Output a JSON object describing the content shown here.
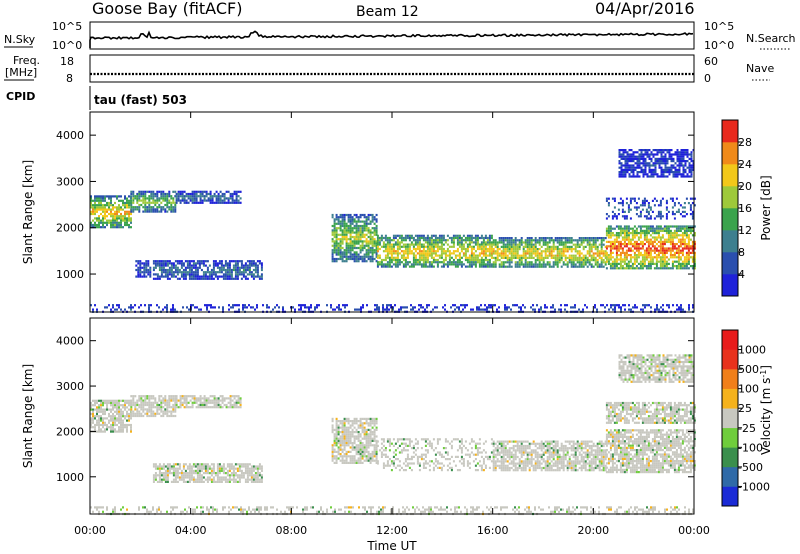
{
  "header": {
    "title": "Goose Bay (fitACF)",
    "beam": "Beam 12",
    "date": "04/Apr/2016"
  },
  "top_panels": {
    "nsky": {
      "label": "N.Sky",
      "right_label": "N.Search",
      "tick_top": "10^5",
      "tick_bottom": "10^0",
      "right_tick_top": "10^5",
      "right_tick_bottom": "10^0"
    },
    "freq": {
      "label_line1": "Freq.",
      "label_line2": "[MHz]",
      "right_label": "Nave",
      "tick_top": "18",
      "tick_bottom": "8",
      "right_tick_top": "60",
      "right_tick_bottom": "0"
    },
    "cpid": {
      "label": "CPID",
      "value": "tau (fast) 503"
    }
  },
  "chart_data": [
    {
      "type": "heatmap",
      "name": "power",
      "ylabel": "Slant Range [km]",
      "xlabel": "",
      "ylim": [
        180,
        4500
      ],
      "xlim": [
        0,
        24
      ],
      "yticks": [
        1000,
        2000,
        3000,
        4000
      ],
      "xticks": [
        0,
        4,
        8,
        12,
        16,
        20,
        24
      ],
      "colorbar": {
        "label": "Power [dB]",
        "ticks": [
          "4",
          "8",
          "12",
          "16",
          "20",
          "24",
          "28"
        ],
        "range": [
          0,
          30
        ],
        "colors": [
          "#1f22d9",
          "#2a4fae",
          "#3d7f8f",
          "#3aa34c",
          "#9ec93a",
          "#f2c81a",
          "#f08a1a",
          "#e8291c"
        ]
      },
      "regions": [
        {
          "t": [
            0.0,
            1.6
          ],
          "r": [
            2000,
            2700
          ],
          "level": 0.55
        },
        {
          "t": [
            1.6,
            3.4
          ],
          "r": [
            2350,
            2800
          ],
          "level": 0.4
        },
        {
          "t": [
            3.4,
            6.0
          ],
          "r": [
            2550,
            2800
          ],
          "level": 0.22
        },
        {
          "t": [
            1.8,
            2.4
          ],
          "r": [
            950,
            1300
          ],
          "level": 0.15
        },
        {
          "t": [
            2.5,
            6.8
          ],
          "r": [
            900,
            1300
          ],
          "level": 0.22
        },
        {
          "t": [
            0.0,
            24.0
          ],
          "r": [
            200,
            350
          ],
          "level": 0.12
        },
        {
          "t": [
            9.6,
            11.4
          ],
          "r": [
            1300,
            2300
          ],
          "level": 0.45
        },
        {
          "t": [
            11.4,
            16.0
          ],
          "r": [
            1150,
            1850
          ],
          "level": 0.55
        },
        {
          "t": [
            16.0,
            20.5
          ],
          "r": [
            1150,
            1800
          ],
          "level": 0.55
        },
        {
          "t": [
            20.5,
            24.0
          ],
          "r": [
            1100,
            2050
          ],
          "level": 0.7
        },
        {
          "t": [
            20.5,
            24.0
          ],
          "r": [
            2200,
            2650
          ],
          "level": 0.18
        },
        {
          "t": [
            21.0,
            24.0
          ],
          "r": [
            3100,
            3700
          ],
          "level": 0.12
        }
      ]
    },
    {
      "type": "heatmap",
      "name": "velocity",
      "ylabel": "Slant Range [km]",
      "xlabel": "Time UT",
      "ylim": [
        180,
        4500
      ],
      "xlim": [
        0,
        24
      ],
      "yticks": [
        1000,
        2000,
        3000,
        4000
      ],
      "xticks": [
        0,
        4,
        8,
        12,
        16,
        20,
        24
      ],
      "xtick_labels": [
        "00:00",
        "04:00",
        "08:00",
        "12:00",
        "16:00",
        "20:00",
        "00:00"
      ],
      "colorbar": {
        "label": "Velocity [m s-1]",
        "label_main": "Velocity ",
        "label_unit": "[m s",
        "label_exp": "-1",
        "label_close": "]",
        "ticks": [
          "1000",
          "500",
          "100",
          "25",
          "-25",
          "-100",
          "-500",
          "-1000"
        ],
        "colors": [
          "#1b2bd6",
          "#2f6aa8",
          "#3a8f4d",
          "#6fcd3c",
          "#c8c8c0",
          "#f5b21c",
          "#f07f1a",
          "#e8321c",
          "#e81b1b"
        ]
      },
      "regions": [
        {
          "t": [
            0.0,
            1.6
          ],
          "r": [
            2000,
            2700
          ],
          "level": 0.5
        },
        {
          "t": [
            1.6,
            3.4
          ],
          "r": [
            2350,
            2800
          ],
          "level": 0.5
        },
        {
          "t": [
            3.4,
            6.0
          ],
          "r": [
            2550,
            2800
          ],
          "level": 0.5
        },
        {
          "t": [
            2.5,
            6.8
          ],
          "r": [
            900,
            1300
          ],
          "level": 0.5
        },
        {
          "t": [
            9.6,
            11.4
          ],
          "r": [
            1300,
            2300
          ],
          "level": 0.5
        },
        {
          "t": [
            11.4,
            16.0
          ],
          "r": [
            1150,
            1850
          ],
          "level": 0.5
        },
        {
          "t": [
            16.0,
            20.5
          ],
          "r": [
            1150,
            1800
          ],
          "level": 0.5
        },
        {
          "t": [
            20.5,
            24.0
          ],
          "r": [
            1100,
            2050
          ],
          "level": 0.5
        },
        {
          "t": [
            20.5,
            24.0
          ],
          "r": [
            2200,
            2650
          ],
          "level": 0.5
        },
        {
          "t": [
            21.0,
            24.0
          ],
          "r": [
            3100,
            3700
          ],
          "level": 0.5
        },
        {
          "t": [
            0.0,
            24.0
          ],
          "r": [
            200,
            350
          ],
          "level": 0.5
        }
      ]
    }
  ]
}
